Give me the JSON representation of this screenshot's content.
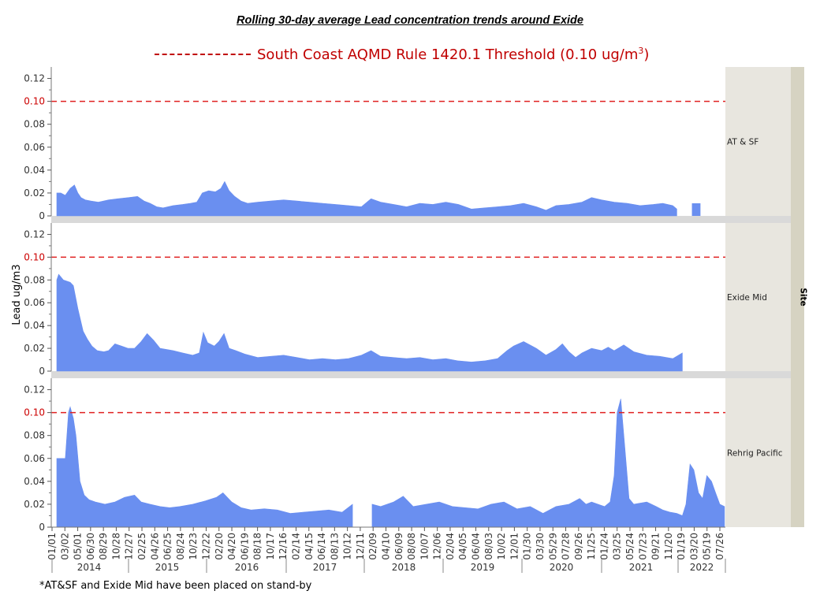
{
  "chart_data": {
    "type": "area",
    "title": "Rolling 30-day average Lead concentration trends around Exide",
    "ylabel": "Lead ug/m3",
    "facet_label": "Site",
    "ylim": [
      0,
      0.13
    ],
    "xlim": [
      "2014-01-01",
      "2022-08-05"
    ],
    "y_ticks": [
      "0",
      "0.02",
      "0.04",
      "0.06",
      "0.08",
      "0.10",
      "0.12"
    ],
    "x_ticks": [
      "01/01",
      "03/02",
      "05/01",
      "06/30",
      "08/29",
      "10/28",
      "12/27",
      "02/25",
      "04/26",
      "06/25",
      "08/24",
      "10/23",
      "12/22",
      "02/20",
      "04/20",
      "06/19",
      "08/18",
      "10/17",
      "12/16",
      "02/14",
      "04/15",
      "06/14",
      "08/13",
      "10/12",
      "12/11",
      "02/09",
      "04/10",
      "06/09",
      "08/08",
      "10/07",
      "12/06",
      "02/04",
      "04/05",
      "06/04",
      "08/03",
      "10/02",
      "12/01",
      "01/30",
      "03/30",
      "05/29",
      "07/28",
      "09/26",
      "11/25",
      "01/24",
      "03/25",
      "05/24",
      "07/23",
      "09/21",
      "11/20",
      "01/19",
      "03/20",
      "05/19",
      "07/26"
    ],
    "years": [
      "2014",
      "2015",
      "2016",
      "2017",
      "2018",
      "2019",
      "2020",
      "2021",
      "2022"
    ],
    "threshold": {
      "value": 0.1,
      "label_main": "South Coast AQMD Rule 1420.1 Threshold (0.10 ug/m",
      "label_sup": "3",
      "label_end": ")",
      "color": "#c00000"
    },
    "fill_color": "#6a8ff0",
    "series": [
      {
        "name": "AT & SF",
        "x": [
          "2014-01-01",
          "2014-01-20",
          "2014-02-10",
          "2014-03-05",
          "2014-03-25",
          "2014-04-10",
          "2014-04-25",
          "2014-05-15",
          "2014-06-10",
          "2014-07-15",
          "2014-09-01",
          "2014-10-15",
          "2014-12-01",
          "2015-01-15",
          "2015-02-15",
          "2015-03-15",
          "2015-04-15",
          "2015-05-15",
          "2015-07-01",
          "2015-08-15",
          "2015-09-20",
          "2015-10-20",
          "2015-11-15",
          "2015-12-15",
          "2016-01-15",
          "2016-02-10",
          "2016-02-28",
          "2016-03-20",
          "2016-04-15",
          "2016-05-15",
          "2016-06-15",
          "2016-08-01",
          "2016-10-01",
          "2016-12-01",
          "2017-02-01",
          "2017-04-01",
          "2017-06-01",
          "2017-08-01",
          "2017-10-01",
          "2017-12-01",
          "2018-01-15",
          "2018-03-01",
          "2018-05-01",
          "2018-07-01",
          "2018-09-01",
          "2018-11-01",
          "2019-01-01",
          "2019-03-01",
          "2019-05-01",
          "2019-07-01",
          "2019-09-01",
          "2019-11-01",
          "2020-01-01",
          "2020-03-01",
          "2020-04-15",
          "2020-06-01",
          "2020-08-01",
          "2020-10-01",
          "2020-11-15",
          "2021-01-01",
          "2021-03-01",
          "2021-05-01",
          "2021-07-01",
          "2021-09-01",
          "2021-10-15",
          "2021-12-01",
          "2021-12-20"
        ],
        "values": [
          0.02,
          0.02,
          0.018,
          0.024,
          0.027,
          0.02,
          0.016,
          0.014,
          0.013,
          0.012,
          0.014,
          0.015,
          0.016,
          0.017,
          0.013,
          0.011,
          0.008,
          0.007,
          0.009,
          0.01,
          0.011,
          0.012,
          0.02,
          0.022,
          0.021,
          0.024,
          0.03,
          0.022,
          0.017,
          0.013,
          0.011,
          0.012,
          0.013,
          0.014,
          0.013,
          0.012,
          0.011,
          0.01,
          0.009,
          0.008,
          0.015,
          0.012,
          0.01,
          0.008,
          0.011,
          0.01,
          0.012,
          0.01,
          0.006,
          0.007,
          0.008,
          0.009,
          0.011,
          0.008,
          0.005,
          0.009,
          0.01,
          0.012,
          0.016,
          0.014,
          0.012,
          0.011,
          0.009,
          0.01,
          0.011,
          0.009,
          0.006
        ],
        "gap_segment": {
          "x": [
            "2022-03-01",
            "2022-04-10"
          ],
          "value": 0.011
        }
      },
      {
        "name": "Exide Mid",
        "x": [
          "2014-01-01",
          "2014-01-10",
          "2014-02-01",
          "2014-03-05",
          "2014-03-20",
          "2014-04-10",
          "2014-05-05",
          "2014-05-25",
          "2014-06-15",
          "2014-07-10",
          "2014-08-10",
          "2014-09-01",
          "2014-10-01",
          "2014-11-01",
          "2014-12-01",
          "2015-01-01",
          "2015-02-01",
          "2015-03-01",
          "2015-04-01",
          "2015-05-01",
          "2015-07-01",
          "2015-08-15",
          "2015-10-01",
          "2015-11-01",
          "2015-11-20",
          "2015-12-10",
          "2016-01-10",
          "2016-02-01",
          "2016-02-25",
          "2016-03-20",
          "2016-04-20",
          "2016-06-01",
          "2016-08-01",
          "2016-10-01",
          "2016-12-01",
          "2017-02-01",
          "2017-04-01",
          "2017-06-01",
          "2017-08-01",
          "2017-10-01",
          "2017-12-01",
          "2018-01-15",
          "2018-03-01",
          "2018-05-01",
          "2018-07-01",
          "2018-09-01",
          "2018-11-01",
          "2019-01-01",
          "2019-03-01",
          "2019-05-01",
          "2019-07-01",
          "2019-09-01",
          "2019-10-15",
          "2019-11-15",
          "2020-01-01",
          "2020-03-01",
          "2020-04-15",
          "2020-06-01",
          "2020-07-01",
          "2020-08-01",
          "2020-09-01",
          "2020-10-01",
          "2020-11-15",
          "2021-01-01",
          "2021-02-01",
          "2021-03-01",
          "2021-04-15",
          "2021-06-01",
          "2021-08-01",
          "2021-10-01",
          "2021-12-01",
          "2022-01-15"
        ],
        "values": [
          0.08,
          0.085,
          0.08,
          0.078,
          0.075,
          0.055,
          0.035,
          0.028,
          0.022,
          0.018,
          0.017,
          0.018,
          0.024,
          0.022,
          0.02,
          0.02,
          0.026,
          0.033,
          0.027,
          0.02,
          0.018,
          0.016,
          0.014,
          0.016,
          0.034,
          0.025,
          0.022,
          0.026,
          0.033,
          0.02,
          0.018,
          0.015,
          0.012,
          0.013,
          0.014,
          0.012,
          0.01,
          0.011,
          0.01,
          0.011,
          0.014,
          0.018,
          0.013,
          0.012,
          0.011,
          0.012,
          0.01,
          0.011,
          0.009,
          0.008,
          0.009,
          0.011,
          0.018,
          0.022,
          0.026,
          0.02,
          0.014,
          0.019,
          0.024,
          0.017,
          0.012,
          0.016,
          0.02,
          0.018,
          0.021,
          0.018,
          0.023,
          0.017,
          0.014,
          0.013,
          0.011,
          0.016
        ]
      },
      {
        "name": "Rehrig Pacific",
        "x": [
          "2014-01-01",
          "2014-01-20",
          "2014-02-10",
          "2014-02-25",
          "2014-03-05",
          "2014-03-20",
          "2014-04-01",
          "2014-04-20",
          "2014-05-10",
          "2014-06-01",
          "2014-07-01",
          "2014-08-15",
          "2014-10-01",
          "2014-11-15",
          "2015-01-01",
          "2015-02-01",
          "2015-03-15",
          "2015-05-01",
          "2015-06-15",
          "2015-08-01",
          "2015-10-01",
          "2015-12-01",
          "2016-01-20",
          "2016-02-20",
          "2016-04-01",
          "2016-05-15",
          "2016-07-01",
          "2016-09-01",
          "2016-11-01",
          "2017-01-01",
          "2017-03-01",
          "2017-05-01",
          "2017-07-01",
          "2017-09-01",
          "2017-10-20",
          "2017-12-10",
          "2018-01-20",
          "2018-03-01",
          "2018-05-01",
          "2018-06-15",
          "2018-08-01",
          "2018-10-01",
          "2018-12-01",
          "2019-02-01",
          "2019-04-01",
          "2019-06-01",
          "2019-08-01",
          "2019-10-01",
          "2019-12-01",
          "2020-02-01",
          "2020-04-01",
          "2020-06-01",
          "2020-08-01",
          "2020-09-20",
          "2020-10-20",
          "2020-11-15",
          "2020-12-15",
          "2021-01-15",
          "2021-02-10",
          "2021-03-01",
          "2021-03-15",
          "2021-04-01",
          "2021-04-20",
          "2021-05-10",
          "2021-06-01",
          "2021-08-01",
          "2021-09-15",
          "2021-10-15",
          "2021-11-20",
          "2021-12-20",
          "2022-01-15",
          "2022-02-01",
          "2022-02-20",
          "2022-03-10",
          "2022-04-01",
          "2022-04-20",
          "2022-05-10",
          "2022-06-01",
          "2022-06-20",
          "2022-07-10",
          "2022-08-01"
        ],
        "values": [
          0.06,
          0.06,
          0.06,
          0.1,
          0.105,
          0.095,
          0.08,
          0.04,
          0.028,
          0.024,
          0.022,
          0.02,
          0.022,
          0.026,
          0.028,
          0.022,
          0.02,
          0.018,
          0.017,
          0.018,
          0.02,
          0.023,
          0.026,
          0.03,
          0.022,
          0.017,
          0.015,
          0.016,
          0.015,
          0.012,
          0.013,
          0.014,
          0.015,
          0.013,
          0.02,
          null,
          0.02,
          0.018,
          0.022,
          0.027,
          0.018,
          0.02,
          0.022,
          0.018,
          0.017,
          0.016,
          0.02,
          0.022,
          0.016,
          0.018,
          0.012,
          0.018,
          0.02,
          0.025,
          0.02,
          0.022,
          0.02,
          0.018,
          0.022,
          0.045,
          0.1,
          0.112,
          0.07,
          0.025,
          0.02,
          0.022,
          0.018,
          0.015,
          0.013,
          0.012,
          0.01,
          0.02,
          0.055,
          0.05,
          0.03,
          0.025,
          0.045,
          0.04,
          0.03,
          0.02,
          0.018
        ]
      }
    ]
  },
  "footnote": "*AT&SF and Exide Mid have been placed on stand-by"
}
